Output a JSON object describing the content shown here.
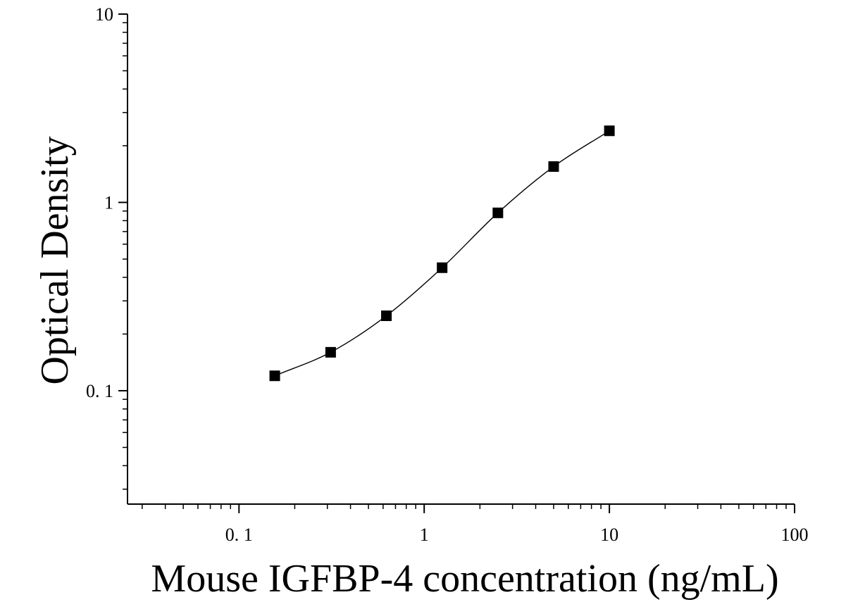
{
  "chart_data": {
    "type": "scatter",
    "xlabel": "Mouse IGFBP-4 concentration (ng/mL)",
    "ylabel": "Optical Density",
    "xscale": "log",
    "yscale": "log",
    "xlim": [
      0.025,
      100
    ],
    "ylim": [
      0.025,
      10
    ],
    "x_ticks": [
      0.1,
      1,
      10,
      100
    ],
    "x_tick_labels": [
      "0. 1",
      "1",
      "10",
      "100"
    ],
    "y_ticks": [
      0.1,
      1,
      10
    ],
    "y_tick_labels": [
      "0. 1",
      "1",
      "10"
    ],
    "grid": false,
    "legend": "none",
    "marker": "square",
    "marker_color": "#000000",
    "line_color": "#000000",
    "series": [
      {
        "x": [
          0.156,
          0.3125,
          0.625,
          1.25,
          2.5,
          5,
          10
        ],
        "y": [
          0.12,
          0.16,
          0.25,
          0.45,
          0.88,
          1.55,
          2.4
        ]
      }
    ]
  }
}
